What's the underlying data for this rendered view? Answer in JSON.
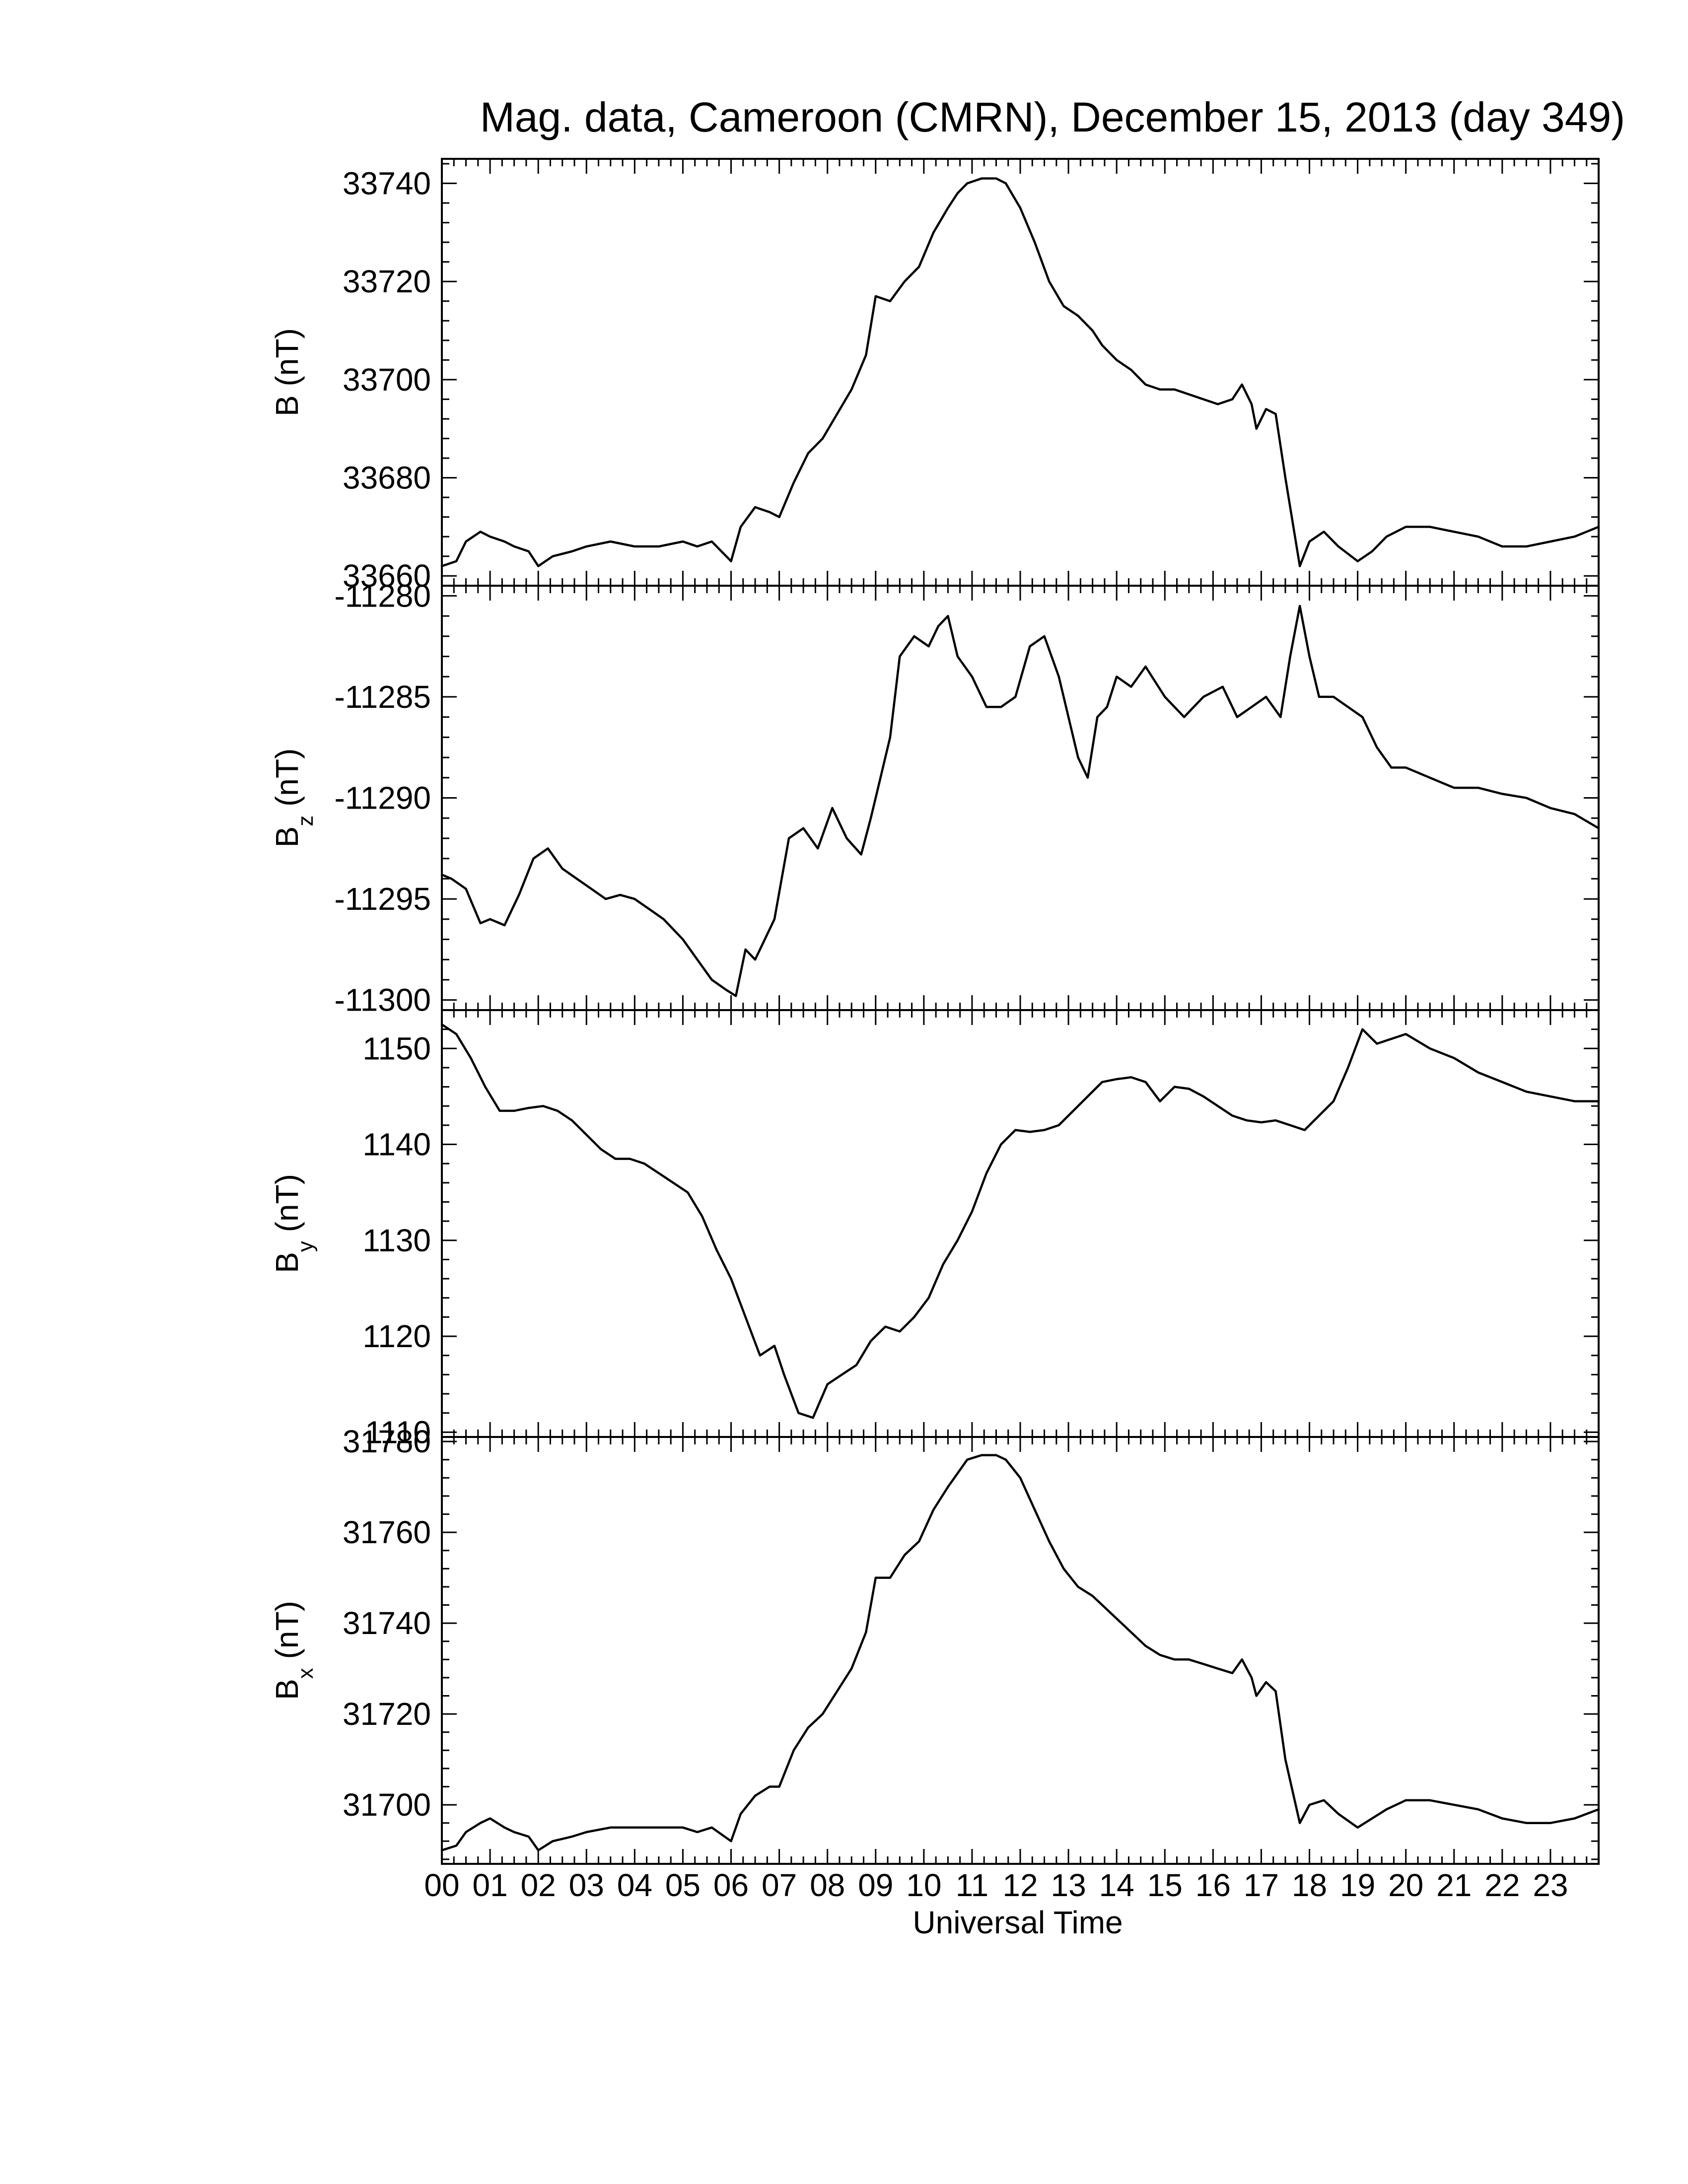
{
  "chart_data": {
    "type": "line",
    "title": "Mag. data, Cameroon (CMRN), December 15, 2013 (day 349)",
    "xlabel": "Universal Time",
    "x_tick_labels": [
      "00",
      "01",
      "02",
      "03",
      "04",
      "05",
      "06",
      "07",
      "08",
      "09",
      "10",
      "11",
      "12",
      "13",
      "14",
      "15",
      "16",
      "17",
      "18",
      "19",
      "20",
      "21",
      "22",
      "23"
    ],
    "xlim": [
      0,
      24
    ],
    "line_color": "#000000",
    "panels": [
      {
        "id": "B",
        "ylabel_main": "B",
        "ylabel_sub": "",
        "ylabel_unit": "(nT)",
        "ylim": [
          33658,
          33745
        ],
        "y_ticks": [
          33660,
          33680,
          33700,
          33720,
          33740
        ],
        "y_tick_labels": [
          "33660",
          "33680",
          "33700",
          "33720",
          "33740"
        ],
        "x": [
          0,
          0.3,
          0.5,
          0.8,
          1.0,
          1.3,
          1.5,
          1.8,
          2.0,
          2.3,
          2.7,
          3.0,
          3.5,
          4.0,
          4.5,
          5.0,
          5.3,
          5.6,
          6.0,
          6.2,
          6.5,
          6.8,
          7.0,
          7.3,
          7.6,
          7.9,
          8.2,
          8.5,
          8.8,
          9.0,
          9.3,
          9.6,
          9.9,
          10.2,
          10.5,
          10.7,
          10.9,
          11.2,
          11.5,
          11.7,
          12.0,
          12.3,
          12.6,
          12.9,
          13.2,
          13.5,
          13.7,
          14.0,
          14.3,
          14.6,
          14.9,
          15.2,
          15.5,
          15.8,
          16.1,
          16.4,
          16.6,
          16.8,
          16.9,
          17.1,
          17.3,
          17.5,
          17.8,
          18.0,
          18.3,
          18.6,
          19.0,
          19.3,
          19.6,
          20.0,
          20.5,
          21.0,
          21.5,
          22.0,
          22.5,
          23.0,
          23.5,
          24.0
        ],
        "values": [
          33662,
          33663,
          33667,
          33669,
          33668,
          33667,
          33666,
          33665,
          33662,
          33664,
          33665,
          33666,
          33667,
          33666,
          33666,
          33667,
          33666,
          33667,
          33663,
          33670,
          33674,
          33673,
          33672,
          33679,
          33685,
          33688,
          33693,
          33698,
          33705,
          33717,
          33716,
          33720,
          33723,
          33730,
          33735,
          33738,
          33740,
          33741,
          33741,
          33740,
          33735,
          33728,
          33720,
          33715,
          33713,
          33710,
          33707,
          33704,
          33702,
          33699,
          33698,
          33698,
          33697,
          33696,
          33695,
          33696,
          33699,
          33695,
          33690,
          33694,
          33693,
          33680,
          33662,
          33667,
          33669,
          33666,
          33663,
          33665,
          33668,
          33670,
          33670,
          33669,
          33668,
          33666,
          33666,
          33667,
          33668,
          33670
        ]
      },
      {
        "id": "Bz",
        "ylabel_main": "B",
        "ylabel_sub": "z",
        "ylabel_unit": "(nT)",
        "ylim": [
          -11300.5,
          -11279.5
        ],
        "y_ticks": [
          -11300,
          -11295,
          -11290,
          -11285,
          -11280
        ],
        "y_tick_labels": [
          "-11300",
          "-11295",
          "-11290",
          "-11285",
          "-11280"
        ],
        "x": [
          0,
          0.2,
          0.5,
          0.8,
          1.0,
          1.3,
          1.6,
          1.9,
          2.2,
          2.5,
          2.8,
          3.1,
          3.4,
          3.7,
          4.0,
          4.3,
          4.6,
          5.0,
          5.3,
          5.6,
          5.9,
          6.1,
          6.3,
          6.5,
          6.7,
          6.9,
          7.2,
          7.5,
          7.8,
          8.1,
          8.4,
          8.7,
          8.9,
          9.1,
          9.3,
          9.5,
          9.8,
          10.1,
          10.3,
          10.5,
          10.7,
          11.0,
          11.3,
          11.6,
          11.9,
          12.2,
          12.5,
          12.8,
          13.0,
          13.2,
          13.4,
          13.6,
          13.8,
          14.0,
          14.3,
          14.6,
          15.0,
          15.4,
          15.8,
          16.2,
          16.5,
          16.8,
          17.1,
          17.4,
          17.6,
          17.8,
          18.0,
          18.2,
          18.5,
          18.8,
          19.1,
          19.4,
          19.7,
          20.0,
          20.5,
          21.0,
          21.5,
          22.0,
          22.5,
          23.0,
          23.5,
          24.0
        ],
        "values": [
          -11293.8,
          -11294.0,
          -11294.5,
          -11296.2,
          -11296.0,
          -11296.3,
          -11294.8,
          -11293.0,
          -11292.5,
          -11293.5,
          -11294.0,
          -11294.5,
          -11295.0,
          -11294.8,
          -11295.0,
          -11295.5,
          -11296.0,
          -11297.0,
          -11298.0,
          -11299.0,
          -11299.5,
          -11299.8,
          -11297.5,
          -11298.0,
          -11297.0,
          -11296.0,
          -11292.0,
          -11291.5,
          -11292.5,
          -11290.5,
          -11292.0,
          -11292.8,
          -11291.0,
          -11289.0,
          -11287.0,
          -11283.0,
          -11282.0,
          -11282.5,
          -11281.5,
          -11281.0,
          -11283.0,
          -11284.0,
          -11285.5,
          -11285.5,
          -11285.0,
          -11282.5,
          -11282.0,
          -11284.0,
          -11286.0,
          -11288.0,
          -11289.0,
          -11286.0,
          -11285.5,
          -11284.0,
          -11284.5,
          -11283.5,
          -11285.0,
          -11286.0,
          -11285.0,
          -11284.5,
          -11286.0,
          -11285.5,
          -11285.0,
          -11286.0,
          -11283.0,
          -11280.5,
          -11283.0,
          -11285.0,
          -11285.0,
          -11285.5,
          -11286.0,
          -11287.5,
          -11288.5,
          -11288.5,
          -11289.0,
          -11289.5,
          -11289.5,
          -11289.8,
          -11290.0,
          -11290.5,
          -11290.8,
          -11291.5
        ]
      },
      {
        "id": "By",
        "ylabel_main": "B",
        "ylabel_sub": "y",
        "ylabel_unit": "(nT)",
        "ylim": [
          1109.5,
          1154
        ],
        "y_ticks": [
          1110,
          1120,
          1130,
          1140,
          1150
        ],
        "y_tick_labels": [
          "1110",
          "1120",
          "1130",
          "1140",
          "1150"
        ],
        "x": [
          0,
          0.3,
          0.6,
          0.9,
          1.2,
          1.5,
          1.8,
          2.1,
          2.4,
          2.7,
          3.0,
          3.3,
          3.6,
          3.9,
          4.2,
          4.5,
          4.8,
          5.1,
          5.4,
          5.7,
          6.0,
          6.3,
          6.6,
          6.9,
          7.1,
          7.4,
          7.7,
          8.0,
          8.3,
          8.6,
          8.9,
          9.2,
          9.5,
          9.8,
          10.1,
          10.4,
          10.7,
          11.0,
          11.3,
          11.6,
          11.9,
          12.2,
          12.5,
          12.8,
          13.1,
          13.4,
          13.7,
          14.0,
          14.3,
          14.6,
          14.9,
          15.2,
          15.5,
          15.8,
          16.1,
          16.4,
          16.7,
          17.0,
          17.3,
          17.6,
          17.9,
          18.2,
          18.5,
          18.8,
          19.1,
          19.4,
          19.7,
          20.0,
          20.5,
          21.0,
          21.5,
          22.0,
          22.5,
          23.0,
          23.5,
          24.0
        ],
        "values": [
          1152.5,
          1151.5,
          1149.0,
          1146.0,
          1143.5,
          1143.5,
          1143.8,
          1144.0,
          1143.5,
          1142.5,
          1141.0,
          1139.5,
          1138.5,
          1138.5,
          1138.0,
          1137.0,
          1136.0,
          1135.0,
          1132.5,
          1129.0,
          1126.0,
          1122.0,
          1118.0,
          1119.0,
          1116.0,
          1112.0,
          1111.5,
          1115.0,
          1116.0,
          1117.0,
          1119.5,
          1121.0,
          1120.5,
          1122.0,
          1124.0,
          1127.5,
          1130.0,
          1133.0,
          1137.0,
          1140.0,
          1141.5,
          1141.3,
          1141.5,
          1142.0,
          1143.5,
          1145.0,
          1146.5,
          1146.8,
          1147.0,
          1146.5,
          1144.5,
          1146.0,
          1145.8,
          1145.0,
          1144.0,
          1143.0,
          1142.5,
          1142.3,
          1142.5,
          1142.0,
          1141.5,
          1143.0,
          1144.5,
          1148.0,
          1152.0,
          1150.5,
          1151.0,
          1151.5,
          1150.0,
          1149.0,
          1147.5,
          1146.5,
          1145.5,
          1145.0,
          1144.5,
          1144.5
        ]
      },
      {
        "id": "Bx",
        "ylabel_main": "B",
        "ylabel_sub": "x",
        "ylabel_unit": "(nT)",
        "ylim": [
          31687,
          31781
        ],
        "y_ticks": [
          31700,
          31720,
          31740,
          31760,
          31780
        ],
        "y_tick_labels": [
          "31700",
          "31720",
          "31740",
          "31760",
          "31780"
        ],
        "x": [
          0,
          0.3,
          0.5,
          0.8,
          1.0,
          1.3,
          1.5,
          1.8,
          2.0,
          2.3,
          2.7,
          3.0,
          3.5,
          4.0,
          4.5,
          5.0,
          5.3,
          5.6,
          6.0,
          6.2,
          6.5,
          6.8,
          7.0,
          7.3,
          7.6,
          7.9,
          8.2,
          8.5,
          8.8,
          9.0,
          9.3,
          9.6,
          9.9,
          10.2,
          10.5,
          10.7,
          10.9,
          11.2,
          11.5,
          11.7,
          12.0,
          12.3,
          12.6,
          12.9,
          13.2,
          13.5,
          13.7,
          14.0,
          14.3,
          14.6,
          14.9,
          15.2,
          15.5,
          15.8,
          16.1,
          16.4,
          16.6,
          16.8,
          16.9,
          17.1,
          17.3,
          17.5,
          17.8,
          18.0,
          18.3,
          18.6,
          19.0,
          19.3,
          19.6,
          20.0,
          20.5,
          21.0,
          21.5,
          22.0,
          22.5,
          23.0,
          23.5,
          24.0
        ],
        "values": [
          31690,
          31691,
          31694,
          31696,
          31697,
          31695,
          31694,
          31693,
          31690,
          31692,
          31693,
          31694,
          31695,
          31695,
          31695,
          31695,
          31694,
          31695,
          31692,
          31698,
          31702,
          31704,
          31704,
          31712,
          31717,
          31720,
          31725,
          31730,
          31738,
          31750,
          31750,
          31755,
          31758,
          31765,
          31770,
          31773,
          31776,
          31777,
          31777,
          31776,
          31772,
          31765,
          31758,
          31752,
          31748,
          31746,
          31744,
          31741,
          31738,
          31735,
          31733,
          31732,
          31732,
          31731,
          31730,
          31729,
          31732,
          31728,
          31724,
          31727,
          31725,
          31710,
          31696,
          31700,
          31701,
          31698,
          31695,
          31697,
          31699,
          31701,
          31701,
          31700,
          31699,
          31697,
          31696,
          31696,
          31697,
          31699
        ]
      }
    ]
  }
}
